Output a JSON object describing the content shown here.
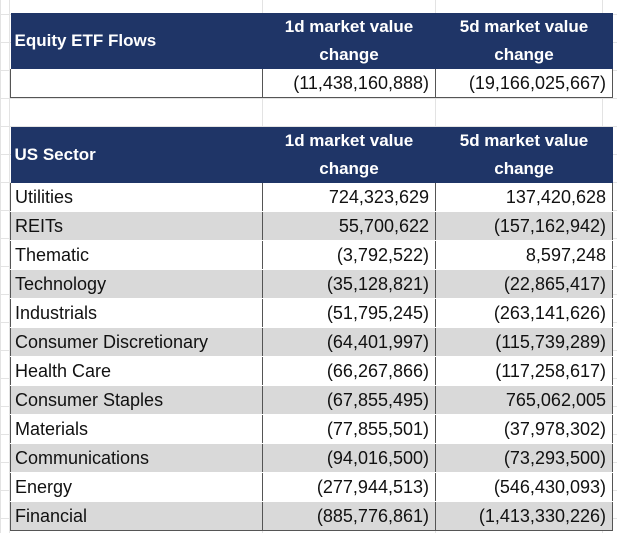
{
  "etf_flows": {
    "header": {
      "title": "Equity ETF Flows",
      "col1_line1": "1d market value",
      "col1_line2": "change",
      "col2_line1": "5d market value",
      "col2_line2": "change"
    },
    "total": {
      "d1": "(11,438,160,888)",
      "d5": "(19,166,025,667)"
    }
  },
  "us_sector": {
    "header": {
      "title": "US Sector",
      "col1_line1": "1d market value",
      "col1_line2": "change",
      "col2_line1": "5d market value",
      "col2_line2": "change"
    },
    "rows": [
      {
        "name": "Utilities",
        "d1": "724,323,629",
        "d5": "137,420,628"
      },
      {
        "name": "REITs",
        "d1": "55,700,622",
        "d5": "(157,162,942)"
      },
      {
        "name": "Thematic",
        "d1": "(3,792,522)",
        "d5": "8,597,248"
      },
      {
        "name": "Technology",
        "d1": "(35,128,821)",
        "d5": "(22,865,417)"
      },
      {
        "name": "Industrials",
        "d1": "(51,795,245)",
        "d5": "(263,141,626)"
      },
      {
        "name": "Consumer Discretionary",
        "d1": "(64,401,997)",
        "d5": "(115,739,289)"
      },
      {
        "name": "Health Care",
        "d1": "(66,267,866)",
        "d5": "(117,258,617)"
      },
      {
        "name": "Consumer Staples",
        "d1": "(67,855,495)",
        "d5": "765,062,005"
      },
      {
        "name": "Materials",
        "d1": "(77,855,501)",
        "d5": "(37,978,302)"
      },
      {
        "name": "Communications",
        "d1": "(94,016,500)",
        "d5": "(73,293,500)"
      },
      {
        "name": "Energy",
        "d1": "(277,944,513)",
        "d5": "(546,430,093)"
      },
      {
        "name": "Financial",
        "d1": "(885,776,861)",
        "d5": "(1,413,330,226)"
      }
    ]
  },
  "colors": {
    "header_bg": "#1f3567",
    "header_text": "#ffffff",
    "stripe": "#d9d9d9"
  }
}
